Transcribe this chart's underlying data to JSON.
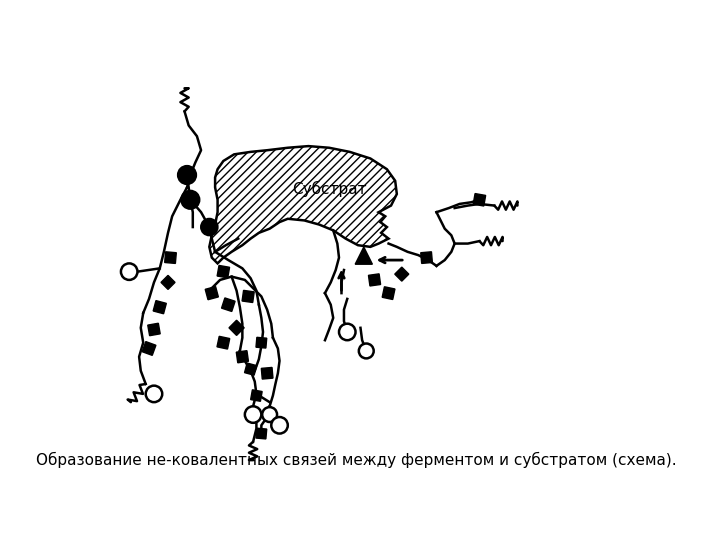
{
  "caption": "Образование не-ковалентных связей между ферментом и субстратом (схема).",
  "bg_color": "#ffffff",
  "line_color": "#000000",
  "substrate_label": "Субстрат",
  "lw": 1.8
}
